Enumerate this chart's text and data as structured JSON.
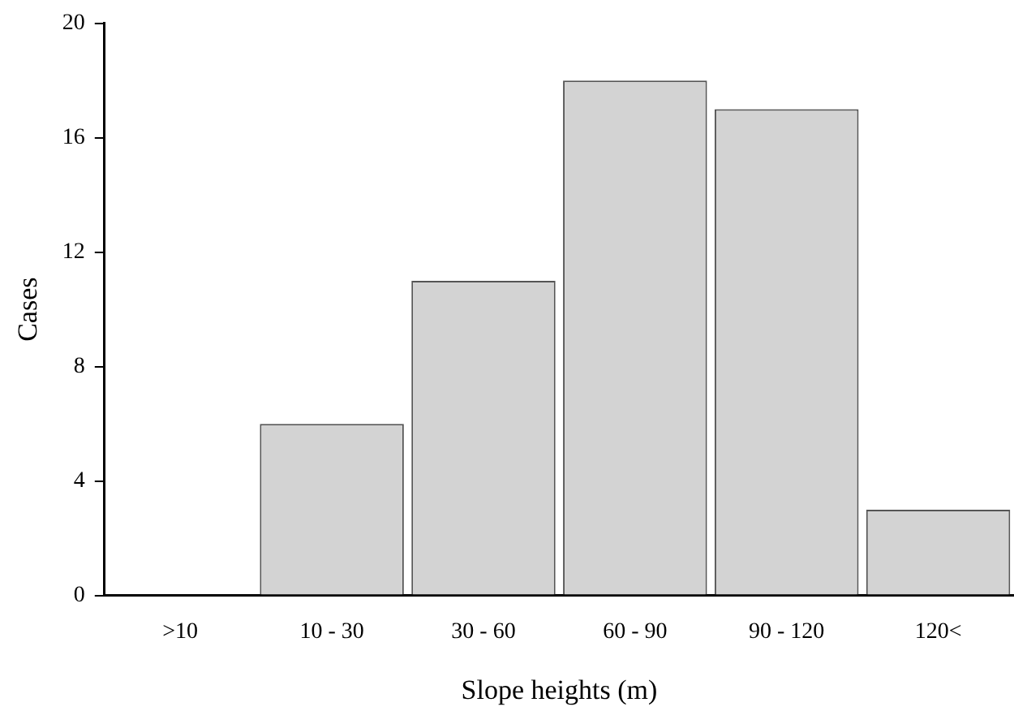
{
  "chart_data": {
    "type": "bar",
    "xlabel": "Slope heights (m)",
    "ylabel": "Cases",
    "categories": [
      ">10",
      "10 - 30",
      "30 - 60",
      "60 - 90",
      "90 - 120",
      "120<"
    ],
    "values": [
      0,
      6,
      11,
      18,
      17,
      3
    ],
    "color": "#d3d3d3",
    "ylim": [
      0,
      20
    ],
    "yticks": [
      0,
      4,
      8,
      12,
      16,
      20
    ],
    "grid": false,
    "legend": false
  }
}
